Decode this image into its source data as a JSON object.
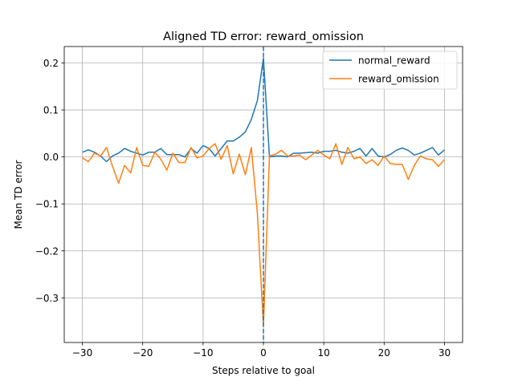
{
  "chart_data": {
    "type": "line",
    "title": "Aligned TD error: reward_omission",
    "xlabel": "Steps relative to goal",
    "ylabel": "Mean TD error",
    "xlim": [
      -33,
      33
    ],
    "ylim": [
      -0.395,
      0.235
    ],
    "x_ticks": [
      -30,
      -20,
      -10,
      0,
      10,
      20,
      30
    ],
    "x_tick_labels": [
      "−30",
      "−20",
      "−10",
      "0",
      "10",
      "20",
      "30"
    ],
    "y_ticks": [
      -0.3,
      -0.2,
      -0.1,
      0.0,
      0.1,
      0.2
    ],
    "y_tick_labels": [
      "−0.3",
      "−0.2",
      "−0.1",
      "0.0",
      "0.1",
      "0.2"
    ],
    "grid": true,
    "legend_position": "top-right",
    "vline": {
      "x": 0,
      "style": "dashed",
      "color": "#1f77b4"
    },
    "x": [
      -30,
      -29,
      -28,
      -27,
      -26,
      -25,
      -24,
      -23,
      -22,
      -21,
      -20,
      -19,
      -18,
      -17,
      -16,
      -15,
      -14,
      -13,
      -12,
      -11,
      -10,
      -9,
      -8,
      -7,
      -6,
      -5,
      -4,
      -3,
      -2,
      -1,
      0,
      1,
      2,
      3,
      4,
      5,
      6,
      7,
      8,
      9,
      10,
      11,
      12,
      13,
      14,
      15,
      16,
      17,
      18,
      19,
      20,
      21,
      22,
      23,
      24,
      25,
      26,
      27,
      28,
      29,
      30
    ],
    "series": [
      {
        "name": "normal_reward",
        "color": "#1f77b4",
        "values": [
          0.01,
          0.015,
          0.01,
          0.002,
          -0.01,
          0.002,
          0.008,
          0.018,
          0.012,
          0.008,
          0.004,
          0.01,
          0.01,
          0.018,
          0.005,
          0.005,
          0.005,
          0.0,
          0.018,
          0.008,
          0.024,
          0.018,
          0.002,
          0.018,
          0.034,
          0.034,
          0.042,
          0.053,
          0.08,
          0.12,
          0.21,
          0.0,
          0.002,
          0.002,
          0.0,
          0.008,
          0.008,
          0.009,
          0.01,
          0.008,
          0.012,
          0.012,
          0.014,
          0.01,
          0.008,
          0.012,
          0.018,
          0.002,
          0.018,
          0.002,
          0.0,
          0.005,
          0.014,
          0.019,
          0.014,
          0.004,
          0.008,
          0.014,
          0.02,
          0.004,
          0.015
        ]
      },
      {
        "name": "reward_omission",
        "color": "#ff7f0e",
        "values": [
          -0.002,
          -0.01,
          0.008,
          0.002,
          0.02,
          -0.02,
          -0.056,
          -0.018,
          -0.034,
          0.02,
          -0.018,
          -0.02,
          0.01,
          -0.005,
          -0.028,
          0.008,
          -0.012,
          -0.012,
          0.02,
          -0.002,
          0.002,
          0.018,
          0.028,
          -0.005,
          0.024,
          -0.036,
          0.006,
          -0.038,
          0.02,
          -0.12,
          -0.36,
          0.002,
          0.006,
          0.014,
          0.002,
          0.002,
          0.004,
          -0.006,
          0.004,
          0.014,
          0.004,
          -0.004,
          0.028,
          -0.016,
          0.02,
          -0.004,
          0.0,
          -0.014,
          -0.006,
          -0.018,
          0.002,
          -0.014,
          -0.016,
          -0.016,
          -0.048,
          -0.018,
          0.002,
          -0.004,
          -0.006,
          -0.02,
          -0.006
        ]
      }
    ]
  }
}
